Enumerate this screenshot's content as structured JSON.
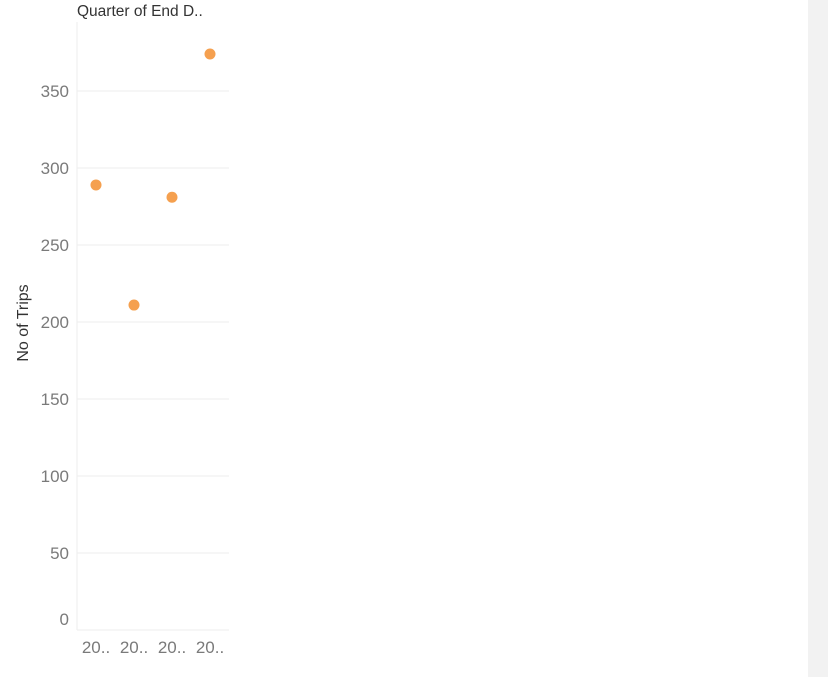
{
  "chart_data": {
    "type": "scatter",
    "title": "",
    "column_header": "Quarter of End D..",
    "xlabel": "",
    "ylabel": "No of Trips",
    "categories": [
      "20..",
      "20..",
      "20..",
      "20.."
    ],
    "values": [
      289,
      211,
      281,
      374
    ],
    "y_ticks": [
      "0",
      "50",
      "100",
      "150",
      "200",
      "250",
      "300",
      "350"
    ],
    "ylim": [
      0,
      390
    ],
    "grid": "horizontal",
    "legend": "none",
    "mark_color": "#f5a04f"
  }
}
